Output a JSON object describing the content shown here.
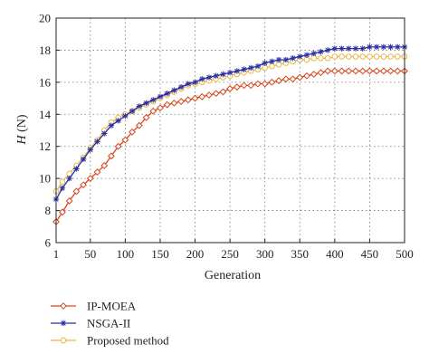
{
  "chart_data": {
    "type": "line",
    "xlabel": "Generation",
    "ylabel_italic": "H",
    "ylabel_unit": " (N)",
    "xlim": [
      1,
      500
    ],
    "ylim": [
      6,
      20
    ],
    "x_ticks": [
      1,
      50,
      100,
      150,
      200,
      250,
      300,
      350,
      400,
      450,
      500
    ],
    "y_ticks": [
      6,
      8,
      10,
      12,
      14,
      16,
      18,
      20
    ],
    "grid": true,
    "legend_position": "below-left",
    "x": [
      1,
      10,
      20,
      30,
      40,
      50,
      60,
      70,
      80,
      90,
      100,
      110,
      120,
      130,
      140,
      150,
      160,
      170,
      180,
      190,
      200,
      210,
      220,
      230,
      240,
      250,
      260,
      270,
      280,
      290,
      300,
      310,
      320,
      330,
      340,
      350,
      360,
      370,
      380,
      390,
      400,
      410,
      420,
      430,
      440,
      450,
      460,
      470,
      480,
      490,
      500
    ],
    "series": [
      {
        "name": "IP-MOEA",
        "color": "#d9451c",
        "marker": "diamond",
        "values": [
          7.3,
          7.9,
          8.6,
          9.2,
          9.6,
          10.0,
          10.4,
          10.8,
          11.4,
          12.0,
          12.4,
          12.9,
          13.3,
          13.8,
          14.2,
          14.4,
          14.6,
          14.7,
          14.8,
          14.9,
          15.0,
          15.1,
          15.2,
          15.3,
          15.4,
          15.6,
          15.7,
          15.8,
          15.8,
          15.9,
          15.9,
          16.0,
          16.1,
          16.2,
          16.2,
          16.3,
          16.4,
          16.5,
          16.6,
          16.7,
          16.7,
          16.7,
          16.7,
          16.7,
          16.7,
          16.7,
          16.7,
          16.7,
          16.7,
          16.7,
          16.7
        ]
      },
      {
        "name": "NSGA-II",
        "color": "#2b2fa0",
        "marker": "star",
        "values": [
          8.7,
          9.4,
          10.0,
          10.6,
          11.2,
          11.8,
          12.3,
          12.8,
          13.3,
          13.6,
          13.9,
          14.2,
          14.5,
          14.7,
          14.9,
          15.1,
          15.3,
          15.5,
          15.7,
          15.9,
          16.0,
          16.2,
          16.3,
          16.4,
          16.5,
          16.6,
          16.7,
          16.8,
          16.9,
          17.0,
          17.2,
          17.3,
          17.4,
          17.4,
          17.5,
          17.6,
          17.7,
          17.8,
          17.9,
          18.0,
          18.1,
          18.1,
          18.1,
          18.1,
          18.1,
          18.2,
          18.2,
          18.2,
          18.2,
          18.2,
          18.2
        ]
      },
      {
        "name": "Proposed method",
        "color": "#e8b84a",
        "marker": "circle",
        "values": [
          9.2,
          9.8,
          10.3,
          10.8,
          11.3,
          11.9,
          12.4,
          13.0,
          13.5,
          13.8,
          14.0,
          14.2,
          14.4,
          14.6,
          14.8,
          15.0,
          15.2,
          15.4,
          15.6,
          15.8,
          15.9,
          16.0,
          16.1,
          16.2,
          16.3,
          16.4,
          16.5,
          16.6,
          16.7,
          16.8,
          16.9,
          17.0,
          17.1,
          17.2,
          17.3,
          17.4,
          17.4,
          17.5,
          17.5,
          17.5,
          17.6,
          17.6,
          17.6,
          17.6,
          17.6,
          17.6,
          17.6,
          17.6,
          17.6,
          17.6,
          17.6
        ]
      }
    ]
  }
}
